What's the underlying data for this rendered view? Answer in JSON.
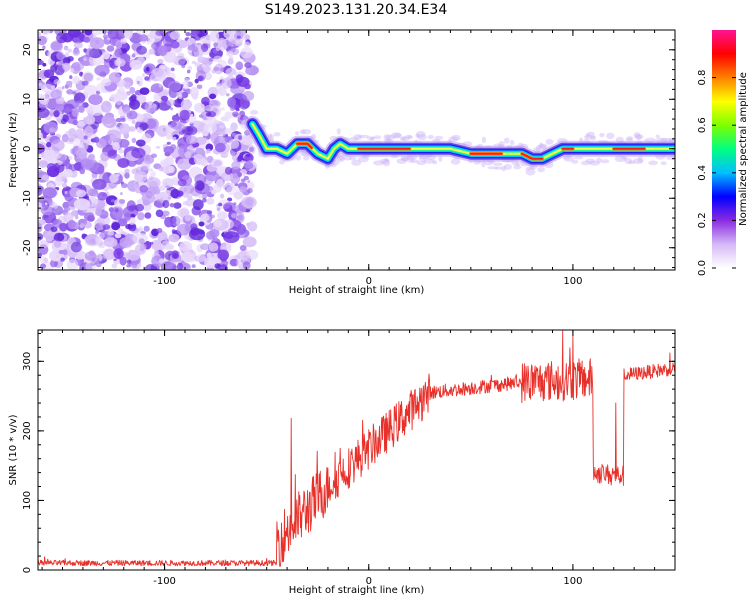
{
  "title": "S149.2023.131.20.34.E34",
  "chart_data": [
    {
      "type": "heatmap",
      "xlabel": "Height of straight line (km)",
      "ylabel": "Frequency (Hz)",
      "xlim": [
        -162,
        150
      ],
      "ylim": [
        -24.5,
        24
      ],
      "xticks": [
        -100,
        0,
        100
      ],
      "yticks": [
        -20,
        -10,
        0,
        10,
        20
      ],
      "noise_region_x": [
        -162,
        -57
      ],
      "ridge": {
        "x": [
          -57,
          -54,
          -50,
          -45,
          -40,
          -35,
          -30,
          -25,
          -20,
          -17,
          -14,
          -10,
          -5,
          0,
          10,
          20,
          30,
          40,
          50,
          60,
          70,
          75,
          80,
          85,
          90,
          95,
          100,
          110,
          120,
          130,
          140,
          150
        ],
        "y": [
          5,
          3,
          0,
          0,
          -1,
          1,
          1,
          -1,
          -2,
          0,
          1,
          0,
          0,
          0,
          0,
          0,
          0,
          0,
          -1,
          -1,
          -1,
          -1,
          -2,
          -2,
          -1,
          0,
          0,
          0,
          0,
          0,
          0,
          0
        ],
        "peak_ranges": [
          [
            -35,
            -28
          ],
          [
            -5,
            20
          ],
          [
            50,
            65
          ],
          [
            75,
            85
          ],
          [
            95,
            100
          ],
          [
            120,
            135
          ]
        ]
      },
      "colorbar": {
        "label": "Normalized spectral amplitude",
        "range": [
          0,
          1
        ],
        "ticks": [
          "0.0",
          "0.2",
          "0.4",
          "0.6",
          "0.8"
        ],
        "colors": [
          "#ffffff",
          "#d6b8f7",
          "#8a2be2",
          "#0000ff",
          "#00bfff",
          "#00ff80",
          "#7fff00",
          "#ffff00",
          "#ff8000",
          "#ff0000",
          "#ff1493"
        ]
      }
    },
    {
      "type": "line",
      "xlabel": "Height of straight line (km)",
      "ylabel": "SNR (10 * v/v)",
      "xlim": [
        -162,
        150
      ],
      "ylim": [
        0,
        345
      ],
      "xticks": [
        -100,
        0,
        100
      ],
      "yticks": [
        0,
        100,
        200,
        300
      ],
      "color": "#e8302a",
      "segments": [
        {
          "x": [
            -162,
            -45
          ],
          "base": [
            10,
            10
          ],
          "noise": 4
        },
        {
          "x": [
            -45,
            -20
          ],
          "base": [
            40,
            120
          ],
          "noise": 40
        },
        {
          "x": [
            -20,
            30
          ],
          "base": [
            120,
            255
          ],
          "noise": 30
        },
        {
          "x": [
            30,
            75
          ],
          "base": [
            255,
            270
          ],
          "noise": 10
        },
        {
          "x": [
            75,
            110
          ],
          "base": [
            270,
            275
          ],
          "noise": 30
        },
        {
          "x": [
            110,
            125
          ],
          "base": [
            140,
            135
          ],
          "noise": 15
        },
        {
          "x": [
            125,
            150
          ],
          "base": [
            280,
            290
          ],
          "noise": 10
        }
      ],
      "spikes": [
        {
          "x": -38,
          "y": 218
        },
        {
          "x": -14,
          "y": 175
        },
        {
          "x": 95,
          "y": 345
        },
        {
          "x": 100,
          "y": 340
        },
        {
          "x": 121,
          "y": 240
        }
      ]
    }
  ]
}
